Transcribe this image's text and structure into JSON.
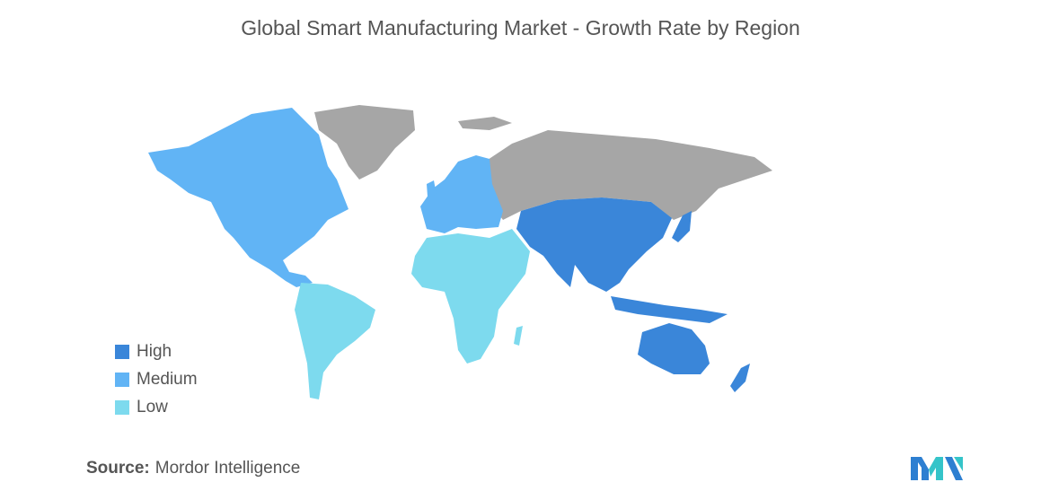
{
  "title": "Global Smart Manufacturing Market - Growth Rate by Region",
  "legend": [
    {
      "label": "High",
      "color": "#3a86d9"
    },
    {
      "label": "Medium",
      "color": "#61b4f5"
    },
    {
      "label": "Low",
      "color": "#7ddaee"
    }
  ],
  "colors": {
    "no_data": "#a6a6a6",
    "high": "#3a86d9",
    "medium": "#61b4f5",
    "low": "#7ddaee"
  },
  "regions": [
    {
      "name": "North America",
      "level": "Medium"
    },
    {
      "name": "Europe",
      "level": "Medium"
    },
    {
      "name": "Asia-Pacific",
      "level": "High"
    },
    {
      "name": "South America",
      "level": "Low"
    },
    {
      "name": "Middle East and Africa",
      "level": "Low"
    }
  ],
  "source": {
    "label": "Source:",
    "text": "Mordor Intelligence"
  },
  "logo": {
    "icon": "mordor-intelligence-logo"
  }
}
